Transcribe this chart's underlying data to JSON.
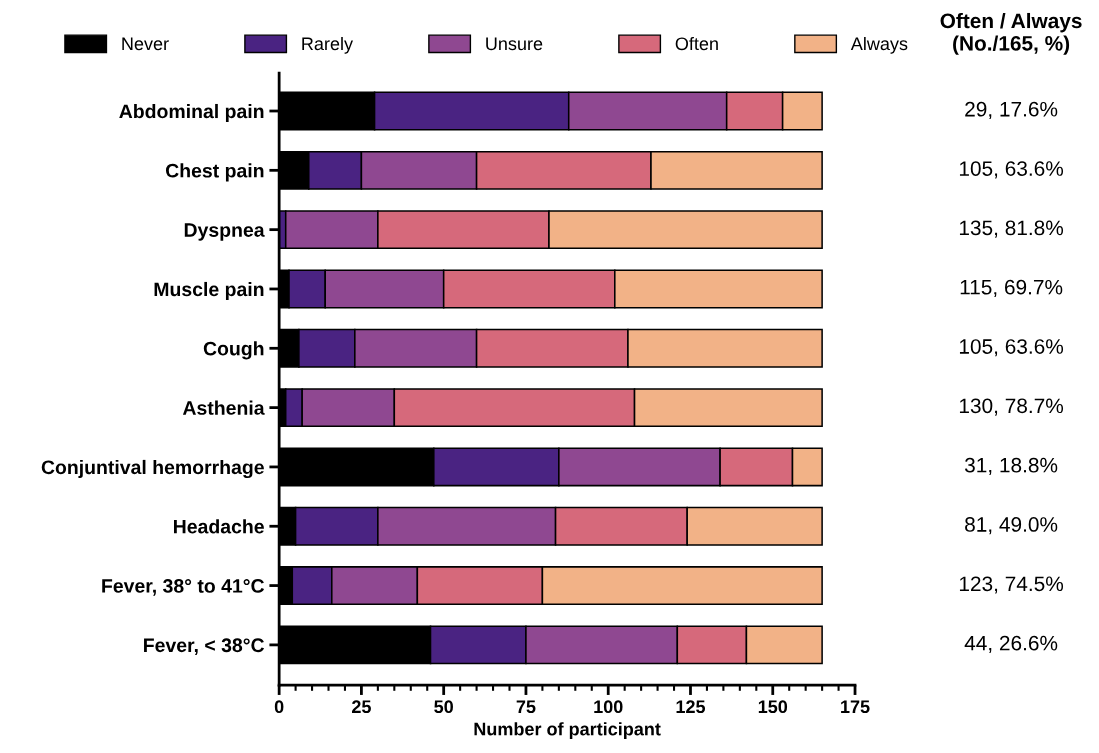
{
  "chart_data": {
    "type": "bar",
    "orientation": "horizontal",
    "stacked": true,
    "categories": [
      "Abdominal pain",
      "Chest pain",
      "Dyspnea",
      "Muscle pain",
      "Cough",
      "Asthenia",
      "Conjuntival hemorrhage",
      "Headache",
      "Fever, 38° to 41°C",
      "Fever, < 38°C"
    ],
    "series": [
      {
        "name": "Never",
        "color": "#000000",
        "values": [
          29,
          9,
          0,
          3,
          6,
          2,
          47,
          5,
          4,
          46
        ]
      },
      {
        "name": "Rarely",
        "color": "#4a2382",
        "values": [
          59,
          16,
          2,
          11,
          17,
          5,
          38,
          25,
          12,
          29
        ]
      },
      {
        "name": "Unsure",
        "color": "#8f4891",
        "values": [
          48,
          35,
          28,
          36,
          37,
          28,
          49,
          54,
          26,
          46
        ]
      },
      {
        "name": "Often",
        "color": "#d6697b",
        "values": [
          17,
          53,
          52,
          52,
          46,
          73,
          22,
          40,
          38,
          21
        ]
      },
      {
        "name": "Always",
        "color": "#f2b287",
        "values": [
          12,
          52,
          83,
          63,
          59,
          57,
          9,
          41,
          85,
          23
        ]
      }
    ],
    "xlabel": "Number of participant",
    "xlim": [
      0,
      175
    ],
    "xticks": [
      0,
      25,
      50,
      75,
      100,
      125,
      150,
      175
    ],
    "legend": "top",
    "grid": false,
    "annotations": [
      "Often / Always\n(No./165, %)",
      "29, 17.6%",
      "105, 63.6%",
      "135, 81.8%",
      "115, 69.7%",
      "105, 63.6%",
      "130, 78.7%",
      "31, 18.8%",
      "81, 49.0%",
      "123, 74.5%",
      "44, 26.6%"
    ]
  }
}
